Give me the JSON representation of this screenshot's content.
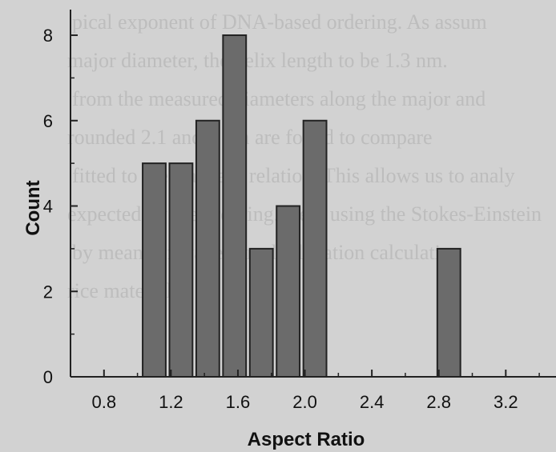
{
  "colors": {
    "background": "#d2d2d2",
    "bar_fill": "#6b6b6b",
    "bar_stroke": "#222222",
    "axis": "#222222",
    "background_text": "#bdbdbd"
  },
  "background_text": {
    "lines": [
      "pical exponent of DNA-based ordering. As assum",
      "major diameter, the helix length to be 1.3 nm.",
      "from the measured diameters along the major and",
      "rounded 2.1 and 2 nm are found to compare",
      "fitted to the standard relation. This allows us to analy",
      "expected by the ordering. Here using the Stokes-Einstein",
      "by means of wave-tuned relaxation calculation",
      "rice materials."
    ]
  },
  "chart_data": {
    "type": "bar",
    "title": "",
    "xlabel": "Aspect Ratio",
    "ylabel": "Count",
    "xlim": [
      0.6,
      3.5
    ],
    "ylim": [
      0,
      8.6
    ],
    "xticks": [
      0.8,
      1.2,
      1.6,
      2.0,
      2.4,
      2.8,
      3.2
    ],
    "yticks": [
      0,
      2,
      4,
      6,
      8
    ],
    "bin_width": 0.16,
    "bars": [
      {
        "x": 1.1,
        "value": 5
      },
      {
        "x": 1.26,
        "value": 5
      },
      {
        "x": 1.42,
        "value": 6
      },
      {
        "x": 1.58,
        "value": 8
      },
      {
        "x": 1.74,
        "value": 3
      },
      {
        "x": 1.9,
        "value": 4
      },
      {
        "x": 2.06,
        "value": 6
      },
      {
        "x": 2.86,
        "value": 3
      }
    ],
    "grid": false,
    "legend": "none"
  }
}
